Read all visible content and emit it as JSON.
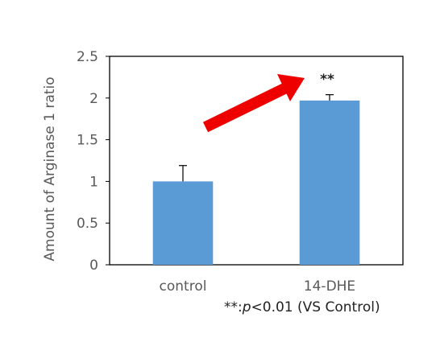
{
  "chart_data": {
    "type": "bar",
    "categories": [
      "control",
      "14-DHE"
    ],
    "values": [
      1.0,
      1.97
    ],
    "error_bars": [
      0.19,
      0.07
    ],
    "ylabel": "Amount of Arginase 1  ratio",
    "ylim": [
      0,
      2.5
    ],
    "yticks": [
      0,
      0.5,
      1,
      1.5,
      2,
      2.5
    ],
    "ytick_labels": [
      "0",
      "0.5",
      "1",
      "1.5",
      "2",
      "2.5"
    ],
    "significance": "**",
    "bar_color": "#5b9bd5",
    "arrow_color": "#ee0000",
    "grid": false
  },
  "footnote": {
    "prefix": "**:",
    "p": "p",
    "rest": "<0.01 (VS Control)"
  }
}
